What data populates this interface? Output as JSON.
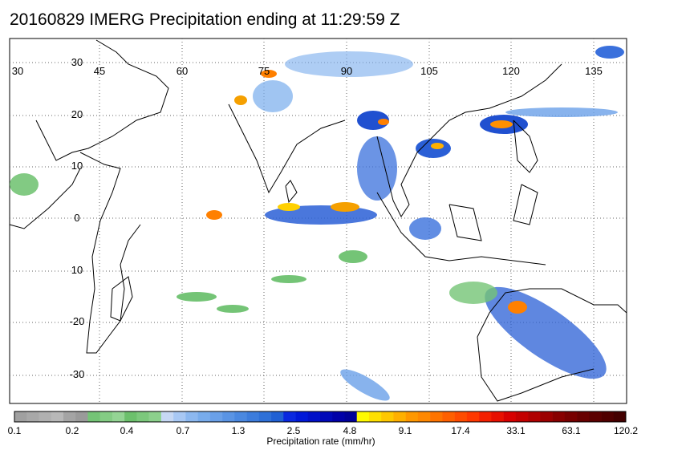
{
  "title": "20160829 IMERG Precipitation ending at 11:29:59 Z",
  "map": {
    "lon_labels": [
      "30",
      "45",
      "60",
      "75",
      "90",
      "105",
      "120",
      "135"
    ],
    "lat_labels": [
      "30",
      "20",
      "10",
      "0",
      "10",
      "-20",
      "-30"
    ],
    "gridlines": "dotted",
    "land_color": "#ffffff",
    "coastline_color": "#000000"
  },
  "colorbar": {
    "title": "Precipitation rate (mm/hr)",
    "tick_labels": [
      "0.1",
      "0.2",
      "0.4",
      "0.7",
      "1.3",
      "2.5",
      "4.8",
      "9.1",
      "17.4",
      "33.1",
      "63.1",
      "120.2"
    ],
    "colors": [
      "#a0a0a0",
      "#a8a8a8",
      "#b0b0b0",
      "#b8b8b8",
      "#a4a4a4",
      "#9a9a9a",
      "#74c476",
      "#84cc84",
      "#94d494",
      "#6cc06c",
      "#7cc87c",
      "#8cd08c",
      "#c6d8f4",
      "#a8c8f4",
      "#8cb8f0",
      "#78acec",
      "#6aa0e8",
      "#5a94e4",
      "#4a88e0",
      "#3c7cdc",
      "#2e70d8",
      "#2060d4",
      "#0a28e0",
      "#0018d8",
      "#0010c8",
      "#0008b8",
      "#0000a8",
      "#000098",
      "#fffa00",
      "#ffe000",
      "#ffc800",
      "#ffb000",
      "#ff9800",
      "#ff8800",
      "#ff7400",
      "#ff6000",
      "#ff4c00",
      "#ff3800",
      "#f42000",
      "#e81000",
      "#d80000",
      "#c40000",
      "#b00000",
      "#9c0000",
      "#880000",
      "#780000",
      "#680000",
      "#5c0000",
      "#500000",
      "#440000"
    ]
  }
}
